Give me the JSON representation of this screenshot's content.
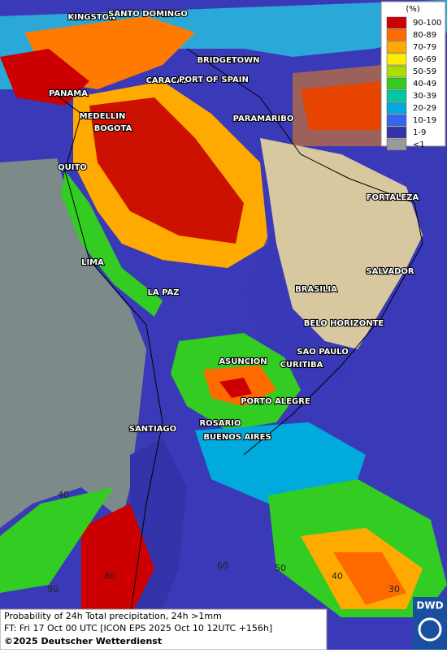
{
  "legend": {
    "title": "(%)",
    "items": [
      {
        "label": "90-100",
        "color": "#cc0000"
      },
      {
        "label": "80-89",
        "color": "#ff6a00"
      },
      {
        "label": "70-79",
        "color": "#ffaa00"
      },
      {
        "label": "60-69",
        "color": "#ffee00"
      },
      {
        "label": "50-59",
        "color": "#aadd00"
      },
      {
        "label": "40-49",
        "color": "#33cc22"
      },
      {
        "label": "30-39",
        "color": "#00c8a0"
      },
      {
        "label": "20-29",
        "color": "#00aadd"
      },
      {
        "label": "10-19",
        "color": "#3366ee"
      },
      {
        "label": "1-9",
        "color": "#3333aa"
      },
      {
        "label": "<1",
        "color": "#9a9a9a"
      }
    ]
  },
  "cities": [
    "KINGSTON",
    "SANTO DOMINGO",
    "BRIDGETOWN",
    "CARACAS",
    "PORT OF SPAIN",
    "PANAMA",
    "PARAMARIBO",
    "MEDELLIN",
    "BOGOTA",
    "QUITO",
    "FORTALEZA",
    "LIMA",
    "SALVADOR",
    "LA PAZ",
    "BRASILIA",
    "BELO HORIZONTE",
    "ASUNCION",
    "SAO PAULO",
    "CURITIBA",
    "PORTO ALEGRE",
    "ROSARIO",
    "SANTIAGO",
    "BUENOS AIRES"
  ],
  "grid_labels": [
    "40",
    "60",
    "50",
    "40",
    "30",
    "90",
    "80"
  ],
  "footer": {
    "description": "Probability of 24h Total precipitation, 24h >1mm",
    "forecast_time": "FT: Fri 17 Oct 00 UTC [ICON EPS 2025 Oct 10 12UTC +156h]",
    "copyright": "©2025 Deutscher Wetterdienst"
  },
  "logo": "DWD"
}
